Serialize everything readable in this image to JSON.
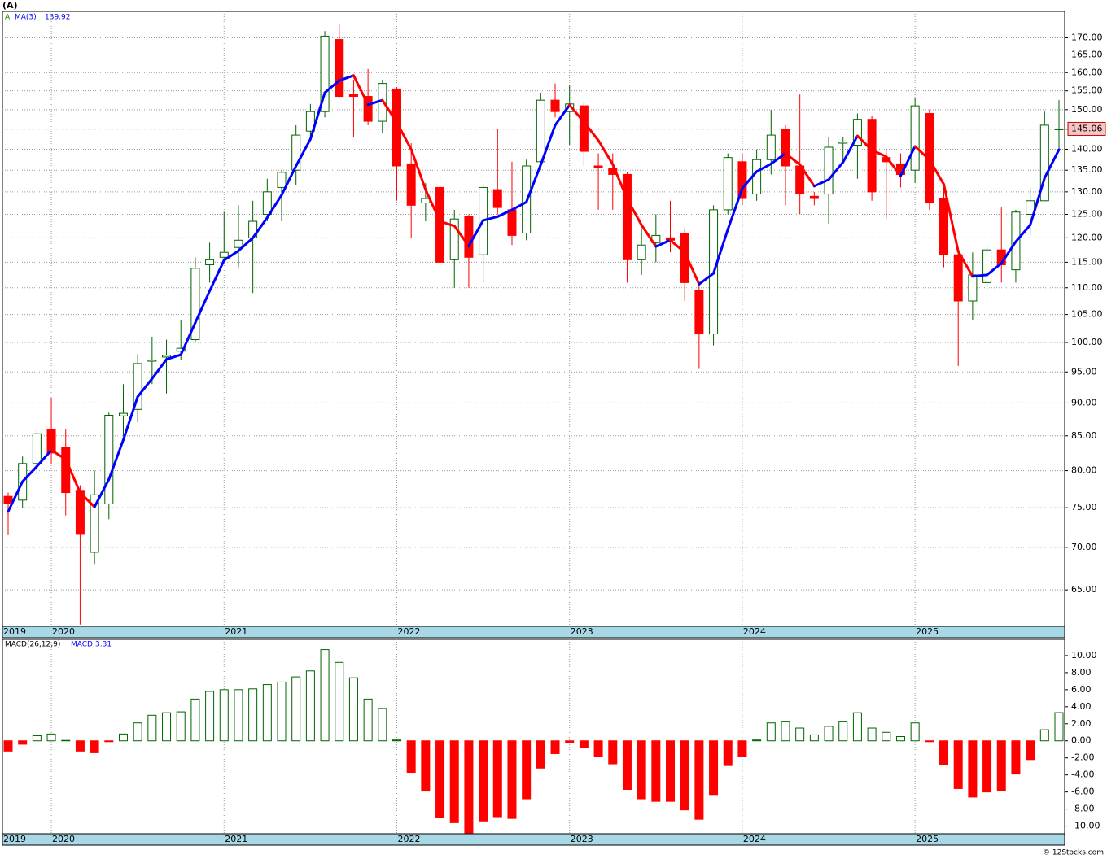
{
  "chart_data": [
    {
      "type": "candlestick",
      "title": "(A)",
      "categories": [
        "2019",
        null,
        null,
        "2020",
        null,
        null,
        null,
        null,
        null,
        null,
        null,
        null,
        null,
        null,
        null,
        "2021",
        null,
        null,
        null,
        null,
        null,
        null,
        null,
        null,
        null,
        null,
        null,
        "2022",
        null,
        null,
        null,
        null,
        null,
        null,
        null,
        null,
        null,
        null,
        null,
        "2023",
        null,
        null,
        null,
        null,
        null,
        null,
        null,
        null,
        null,
        null,
        null,
        "2024",
        null,
        null,
        null,
        null,
        null,
        null,
        null,
        null,
        null,
        null,
        null,
        "2025",
        null,
        null,
        null,
        null,
        null,
        null,
        null,
        null,
        null,
        null
      ],
      "series": [
        {
          "name": "A",
          "up_color": "#006400",
          "down_color": "#ff0000",
          "last_value_label": "145.06",
          "open": [
            76.5,
            76,
            81,
            86,
            83.3,
            77.3,
            69.4,
            75.5,
            88,
            89,
            96.8,
            97.5,
            98.5,
            100.5,
            114.5,
            116,
            118,
            120,
            125,
            131,
            135,
            144.5,
            149.5,
            169.5,
            154,
            153.5,
            147,
            155.5,
            136.5,
            127.5,
            131,
            115.5,
            124.5,
            116.5,
            130.5,
            126,
            121,
            137,
            152.5,
            149.5,
            151,
            136,
            135.5,
            134,
            115.5,
            119,
            120,
            121,
            109.5,
            101.5,
            126,
            137,
            129.5,
            137.5,
            145,
            136,
            129,
            129.5,
            141.5,
            141,
            147.5,
            138,
            136.5,
            135,
            149,
            128.5,
            116.5,
            107.5,
            111,
            117.5,
            113.5,
            125,
            128,
            145
          ],
          "high": [
            77,
            82,
            85.7,
            90.8,
            86,
            78,
            80,
            88.5,
            93,
            98,
            101,
            100.5,
            104,
            116,
            119,
            125.5,
            127,
            128,
            133,
            135,
            146,
            151.5,
            172,
            174,
            158,
            161,
            158,
            156,
            141.5,
            132,
            133.5,
            126,
            125,
            131.5,
            145,
            137,
            137.5,
            154.5,
            157,
            156.5,
            152,
            139,
            139,
            134.5,
            122,
            125,
            128,
            122,
            111,
            127,
            139,
            139,
            140,
            150,
            146,
            154,
            130,
            143,
            143,
            149,
            148.5,
            140,
            139,
            153,
            150,
            131,
            117,
            117,
            118.5,
            126.5,
            126,
            131,
            149.5,
            152.5
          ],
          "low": [
            71.5,
            75,
            79.5,
            81,
            74,
            61.2,
            68,
            73.5,
            85,
            87,
            93,
            91.5,
            97,
            100,
            111,
            115,
            114,
            109,
            123.5,
            123.5,
            131.5,
            142,
            148,
            153,
            143,
            146,
            144,
            128,
            120,
            123.5,
            114,
            110,
            110,
            111,
            125,
            118.5,
            119.5,
            135,
            148,
            141,
            136,
            126,
            126,
            111,
            112.5,
            115,
            117,
            107.5,
            95.5,
            99.5,
            125,
            127,
            128,
            134,
            127,
            125,
            127,
            123,
            137,
            133,
            128,
            124,
            131,
            132,
            126,
            114,
            96,
            104,
            109.5,
            111,
            111,
            120.5,
            128,
            140
          ],
          "close": [
            75.5,
            81,
            85.3,
            82.5,
            77,
            71.6,
            76.7,
            88.1,
            88.4,
            96.4,
            97,
            97.8,
            99,
            113.8,
            115.5,
            117,
            119.5,
            123.5,
            130,
            134.5,
            143.5,
            149.5,
            170.5,
            153.5,
            153.5,
            147,
            157,
            136,
            127,
            128.5,
            115,
            124,
            116,
            131,
            126.5,
            120.5,
            136,
            152.5,
            149.5,
            151.5,
            139.5,
            135.7,
            134,
            115.5,
            118.5,
            120.5,
            119.5,
            111,
            101.5,
            126,
            138,
            128.5,
            137.5,
            143.5,
            136,
            129.5,
            128.5,
            140.5,
            141.8,
            147.5,
            130,
            137,
            134,
            151,
            127.5,
            116.5,
            107.5,
            112.5,
            117.5,
            114.5,
            125.5,
            128,
            146,
            145.06
          ]
        }
      ],
      "ma": {
        "name": "MA(3)",
        "value_label": "139.92",
        "up_color": "#0000ff",
        "down_color": "#ff0000",
        "values": [
          74.5,
          78.5,
          80.6,
          82.9,
          81.6,
          77,
          75.1,
          78.8,
          84.4,
          91,
          93.9,
          97.1,
          97.9,
          103.5,
          109.4,
          115.4,
          117.3,
          120,
          124.3,
          129.3,
          136,
          142.5,
          154.5,
          157.8,
          159.2,
          151.3,
          152.5,
          146.7,
          140,
          130.5,
          123.5,
          122.5,
          118.3,
          123.7,
          124.5,
          126,
          127.7,
          136.3,
          146,
          151.2,
          146.8,
          142.2,
          136.4,
          128.4,
          122.7,
          118.2,
          119.5,
          117,
          110.7,
          112.8,
          121.8,
          130.8,
          134.7,
          136.5,
          139,
          136.3,
          131.3,
          132.8,
          136.9,
          143.3,
          139.8,
          138.2,
          133.7,
          140.7,
          137.5,
          131.7,
          117.2,
          112.2,
          112.5,
          114.8,
          119.2,
          122.7,
          133.2,
          139.92
        ]
      },
      "log_scale": true,
      "ylim": [
        61,
        178
      ],
      "grid": true,
      "yticks": [
        {
          "value": 65,
          "label": "65.00"
        },
        {
          "value": 70,
          "label": "70.00"
        },
        {
          "value": 75,
          "label": "75.00"
        },
        {
          "value": 80,
          "label": "80.00"
        },
        {
          "value": 85,
          "label": "85.00"
        },
        {
          "value": 90,
          "label": "90.00"
        },
        {
          "value": 95,
          "label": "95.00"
        },
        {
          "value": 100,
          "label": "100.00"
        },
        {
          "value": 105,
          "label": "105.00"
        },
        {
          "value": 110,
          "label": "110.00"
        },
        {
          "value": 115,
          "label": "115.00"
        },
        {
          "value": 120,
          "label": "120.00"
        },
        {
          "value": 125,
          "label": "125.00"
        },
        {
          "value": 130,
          "label": "130.00"
        },
        {
          "value": 135,
          "label": "135.00"
        },
        {
          "value": 140,
          "label": "140.00"
        },
        {
          "value": 145,
          "label": "145.00"
        },
        {
          "value": 150,
          "label": "150.00"
        },
        {
          "value": 155,
          "label": "155.00"
        },
        {
          "value": 160,
          "label": "160.00"
        },
        {
          "value": 165,
          "label": "165.00"
        },
        {
          "value": 170,
          "label": "170.00"
        }
      ]
    },
    {
      "type": "bar",
      "title": "MACD(26,12,9)",
      "series": [
        {
          "name": "MACD",
          "value_label": "MACD:3.31",
          "up_color": "#006400",
          "down_color": "#ff0000",
          "values": [
            -1.2,
            -0.4,
            0.6,
            0.8,
            0.05,
            -1.2,
            -1.4,
            -0.1,
            0.8,
            2.1,
            3,
            3.3,
            3.4,
            4.9,
            5.8,
            6,
            6,
            6.1,
            6.6,
            6.9,
            7.5,
            8.2,
            10.7,
            9.2,
            7.4,
            4.9,
            3.8,
            0.1,
            -3.7,
            -5.9,
            -9,
            -9.6,
            -10.8,
            -9.4,
            -8.9,
            -9.1,
            -6.8,
            -3.2,
            -1.5,
            -0.2,
            -0.8,
            -1.8,
            -2.7,
            -5.7,
            -6.8,
            -7.1,
            -7.1,
            -8.1,
            -9.2,
            -6.3,
            -2.9,
            -1.8,
            0.1,
            2.1,
            2.3,
            1.5,
            0.7,
            1.7,
            2.3,
            3.3,
            1.5,
            1,
            0.5,
            2.1,
            -0.1,
            -2.8,
            -5.6,
            -6.6,
            -6,
            -5.8,
            -3.9,
            -2.2,
            1.3,
            3.31
          ]
        }
      ],
      "ylim": [
        -10.9,
        11.9
      ],
      "grid": false,
      "yticks": [
        {
          "value": -10,
          "label": "-10.00"
        },
        {
          "value": -8,
          "label": "-8.00"
        },
        {
          "value": -6,
          "label": "-6.00"
        },
        {
          "value": -4,
          "label": "-4.00"
        },
        {
          "value": -2,
          "label": "-2.00"
        },
        {
          "value": 0,
          "label": "0.00"
        },
        {
          "value": 2,
          "label": "2.00"
        },
        {
          "value": 4,
          "label": "4.00"
        },
        {
          "value": 6,
          "label": "6.00"
        },
        {
          "value": 8,
          "label": "8.00"
        },
        {
          "value": 10,
          "label": "10.00"
        }
      ]
    }
  ],
  "footer": "© 12Stocks.com"
}
